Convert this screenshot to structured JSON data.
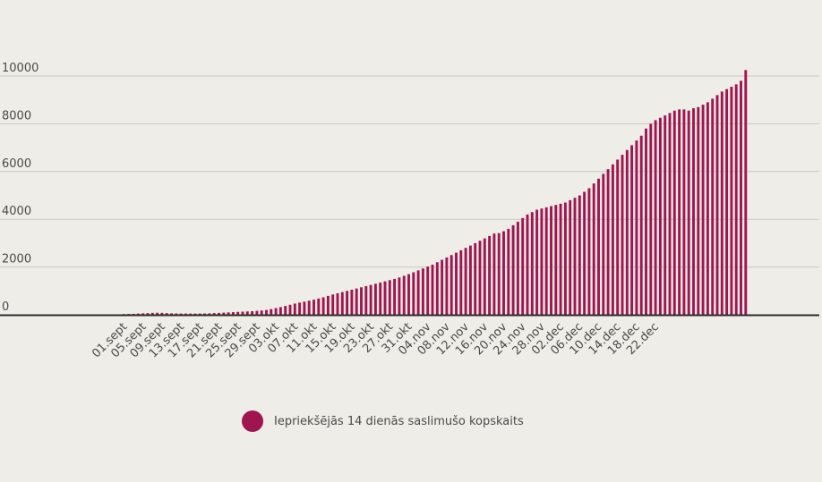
{
  "chart_data": {
    "type": "bar",
    "start": "01.sept",
    "x_ticks": [
      "01.sept",
      "05.sept",
      "09.sept",
      "13.sept",
      "17.sept",
      "21.sept",
      "25.sept",
      "29.sept",
      "03.okt",
      "07.okt",
      "11.okt",
      "15.okt",
      "19.okt",
      "23.okt",
      "27.okt",
      "31.okt",
      "04.nov",
      "08.nov",
      "12.nov",
      "16.nov",
      "20.nov",
      "24.nov",
      "28.nov",
      "02.dec",
      "06.dec",
      "10.dec",
      "14.dec",
      "18.dec",
      "22.dec"
    ],
    "y_ticks": [
      0,
      2000,
      4000,
      6000,
      8000,
      10000
    ],
    "ylim": [
      0,
      10500
    ],
    "grid": true,
    "legend_position": "bottom",
    "series": [
      {
        "name": "Iepriekšējās 14 dienās saslimušo kopskaits",
        "color": "#a0154f",
        "values": [
          30,
          35,
          40,
          50,
          60,
          70,
          80,
          85,
          80,
          70,
          60,
          55,
          50,
          50,
          50,
          50,
          52,
          55,
          60,
          70,
          80,
          90,
          100,
          110,
          120,
          130,
          140,
          150,
          165,
          180,
          200,
          240,
          280,
          320,
          370,
          420,
          470,
          510,
          550,
          590,
          630,
          680,
          730,
          790,
          850,
          900,
          950,
          1000,
          1050,
          1100,
          1150,
          1200,
          1250,
          1300,
          1350,
          1400,
          1450,
          1500,
          1560,
          1630,
          1700,
          1780,
          1860,
          1940,
          2020,
          2100,
          2200,
          2300,
          2400,
          2500,
          2600,
          2700,
          2800,
          2900,
          3000,
          3100,
          3200,
          3300,
          3400,
          3420,
          3500,
          3600,
          3750,
          3900,
          4050,
          4200,
          4300,
          4400,
          4450,
          4500,
          4550,
          4600,
          4650,
          4700,
          4800,
          4900,
          5000,
          5150,
          5300,
          5500,
          5700,
          5900,
          6100,
          6300,
          6500,
          6700,
          6900,
          7100,
          7300,
          7500,
          7800,
          8000,
          8150,
          8250,
          8350,
          8450,
          8550,
          8600,
          8600,
          8550,
          8650,
          8700,
          8800,
          8900,
          9050,
          9200,
          9350,
          9450,
          9550,
          9650,
          9800,
          10250
        ]
      }
    ]
  }
}
